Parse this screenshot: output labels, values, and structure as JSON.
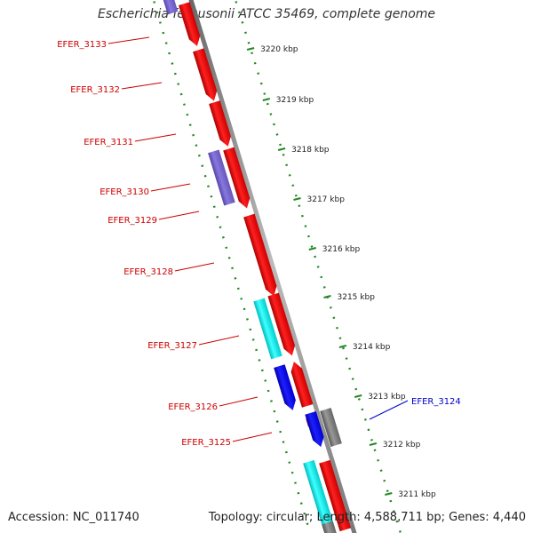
{
  "title": "Escherichia fergusonii ATCC 35469, complete genome",
  "footer": {
    "accession": "Accession: NC_011740",
    "meta": "Topology: circular; Length: 4,588,711 bp; Genes: 4,440"
  },
  "colors": {
    "gene_red": "#ff0000",
    "gene_blue": "#0000ee",
    "gene_cyan": "#00eeee",
    "gene_lavender": "#7a66cc",
    "gene_gray": "#777777",
    "label_red": "#cc0000",
    "label_blue": "#0000cc",
    "track_dots": "#228822",
    "backbone": "#888888"
  },
  "ticks": [
    {
      "label": "3220 kbp"
    },
    {
      "label": "3219 kbp"
    },
    {
      "label": "3218 kbp"
    },
    {
      "label": "3217 kbp"
    },
    {
      "label": "3216 kbp"
    },
    {
      "label": "3215 kbp"
    },
    {
      "label": "3214 kbp"
    },
    {
      "label": "3213 kbp"
    },
    {
      "label": "3212 kbp"
    },
    {
      "label": "3211 kbp"
    }
  ],
  "gene_labels": [
    {
      "name": "EFER_3133",
      "color": "#cc0000"
    },
    {
      "name": "EFER_3132",
      "color": "#cc0000"
    },
    {
      "name": "EFER_3131",
      "color": "#cc0000"
    },
    {
      "name": "EFER_3130",
      "color": "#cc0000"
    },
    {
      "name": "EFER_3129",
      "color": "#cc0000"
    },
    {
      "name": "EFER_3128",
      "color": "#cc0000"
    },
    {
      "name": "EFER_3127",
      "color": "#cc0000"
    },
    {
      "name": "EFER_3126",
      "color": "#cc0000"
    },
    {
      "name": "EFER_3125",
      "color": "#cc0000"
    },
    {
      "name": "EFER_3124",
      "color": "#0000cc"
    }
  ]
}
